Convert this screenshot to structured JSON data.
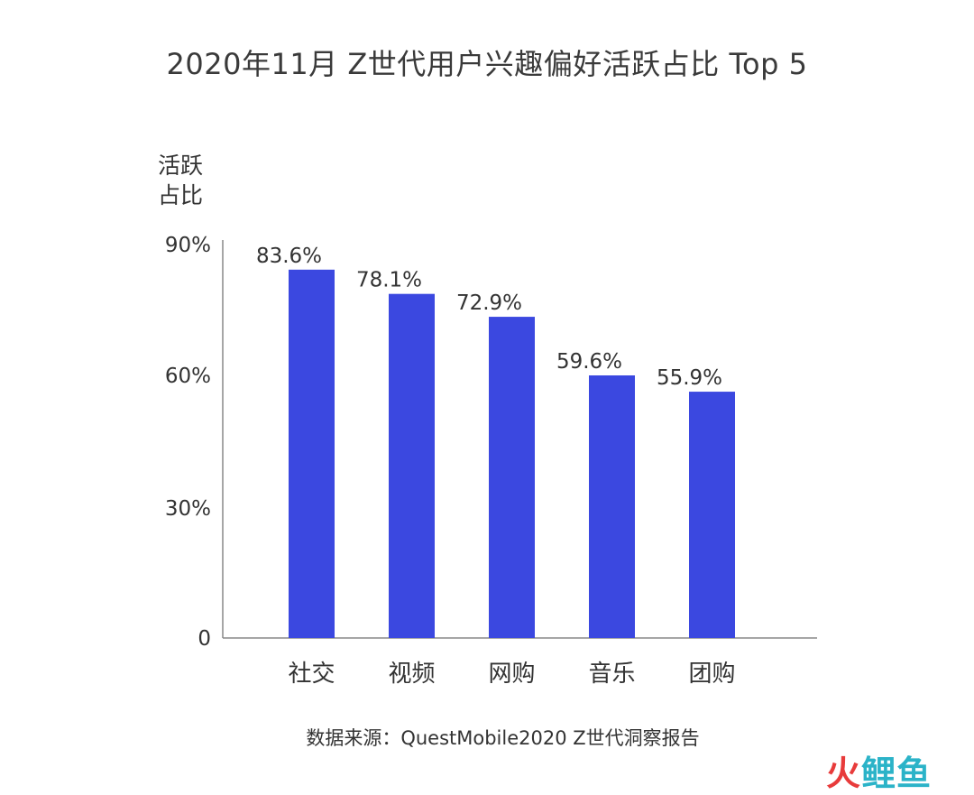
{
  "title": "2020年11月 Z世代用户兴趣偏好活跃占比 Top 5",
  "source": "数据来源：QuestMobile2020 Z世代洞察报告",
  "watermark": {
    "char1": "火",
    "char2": "鲤",
    "char3": "鱼"
  },
  "colors": {
    "bar": "#3b48e0",
    "axis": "#888888",
    "text": "#333333"
  },
  "chart_data": {
    "type": "bar",
    "title": "2020年11月 Z世代用户兴趣偏好活跃占比 Top 5",
    "ylabel_lines": [
      "活跃",
      "占比"
    ],
    "categories": [
      "社交",
      "视频",
      "网购",
      "音乐",
      "团购"
    ],
    "values": [
      83.6,
      78.1,
      72.9,
      59.6,
      55.9
    ],
    "value_labels": [
      "83.6%",
      "78.1%",
      "72.9%",
      "59.6%",
      "55.9%"
    ],
    "ylim": [
      0,
      90
    ],
    "yticks": [
      0,
      30,
      60,
      90
    ],
    "ytick_labels": [
      "0",
      "30%",
      "60%",
      "90%"
    ],
    "grid": false,
    "legend": "none"
  }
}
